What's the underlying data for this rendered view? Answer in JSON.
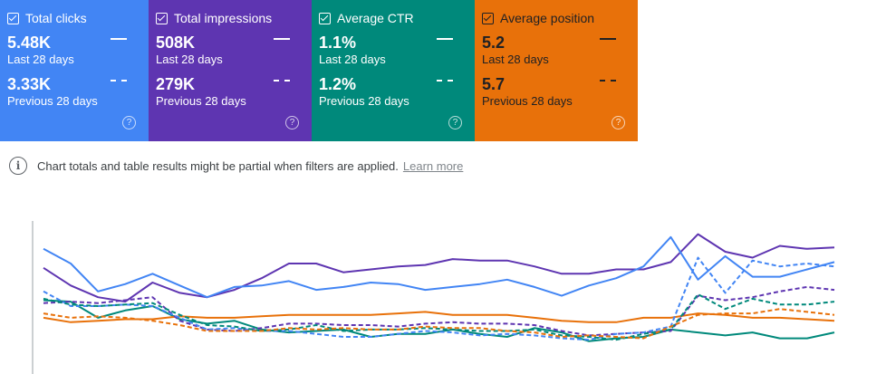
{
  "cards": [
    {
      "title": "Total clicks",
      "current_value": "5.48K",
      "current_period": "Last 28 days",
      "previous_value": "3.33K",
      "previous_period": "Previous 28 days",
      "color": "#4285f4"
    },
    {
      "title": "Total impressions",
      "current_value": "508K",
      "current_period": "Last 28 days",
      "previous_value": "279K",
      "previous_period": "Previous 28 days",
      "color": "#5e35b1"
    },
    {
      "title": "Average CTR",
      "current_value": "1.1%",
      "current_period": "Last 28 days",
      "previous_value": "1.2%",
      "previous_period": "Previous 28 days",
      "color": "#00897b"
    },
    {
      "title": "Average position",
      "current_value": "5.2",
      "current_period": "Last 28 days",
      "previous_value": "5.7",
      "previous_period": "Previous 28 days",
      "color": "#e8710a"
    }
  ],
  "help_glyph": "?",
  "notice": {
    "info_glyph": "i",
    "text": "Chart totals and table results might be partial when filters are applied.",
    "link": "Learn more"
  },
  "chart_data": {
    "type": "line",
    "note": "Values are relative (0-100) as no axis is visible; higher = visually higher.",
    "series": [
      {
        "key": "impressions_current",
        "color": "#5e35b1",
        "dashed": false,
        "values": [
          68,
          56,
          48,
          45,
          58,
          51,
          48,
          53,
          61,
          71,
          71,
          65,
          67,
          69,
          70,
          74,
          73,
          73,
          69,
          64,
          64,
          67,
          67,
          72,
          91,
          79,
          75,
          83,
          81,
          82
        ]
      },
      {
        "key": "clicks_current",
        "color": "#4285f4",
        "dashed": false,
        "values": [
          81,
          71,
          52,
          57,
          64,
          56,
          48,
          55,
          56,
          59,
          53,
          55,
          58,
          57,
          53,
          55,
          57,
          60,
          55,
          49,
          56,
          61,
          69,
          89,
          60,
          76,
          62,
          62,
          67,
          72
        ]
      },
      {
        "key": "ctr_current",
        "color": "#00897b",
        "dashed": false,
        "values": [
          46,
          45,
          34,
          39,
          42,
          33,
          30,
          32,
          26,
          24,
          25,
          26,
          21,
          23,
          23,
          26,
          23,
          21,
          27,
          24,
          18,
          20,
          21,
          26,
          24,
          22,
          24,
          20,
          20,
          24
        ]
      },
      {
        "key": "position_current",
        "color": "#e8710a",
        "dashed": false,
        "values": [
          34,
          31,
          32,
          33,
          33,
          35,
          34,
          34,
          35,
          36,
          36,
          36,
          36,
          37,
          38,
          36,
          36,
          36,
          34,
          32,
          31,
          31,
          34,
          34,
          37,
          36,
          34,
          34,
          33,
          32
        ]
      },
      {
        "key": "impressions_previous",
        "color": "#5e35b1",
        "dashed": true,
        "values": [
          44,
          45,
          44,
          46,
          48,
          32,
          26,
          25,
          27,
          30,
          30,
          29,
          29,
          28,
          30,
          31,
          30,
          30,
          29,
          25,
          22,
          23,
          24,
          25,
          49,
          46,
          48,
          52,
          55,
          53
        ]
      },
      {
        "key": "clicks_previous",
        "color": "#4285f4",
        "dashed": true,
        "values": [
          52,
          42,
          42,
          43,
          42,
          34,
          26,
          27,
          25,
          25,
          23,
          21,
          21,
          23,
          25,
          24,
          22,
          23,
          22,
          20,
          19,
          23,
          24,
          28,
          75,
          51,
          73,
          69,
          71,
          69
        ]
      },
      {
        "key": "ctr_previous",
        "color": "#00897b",
        "dashed": true,
        "values": [
          47,
          43,
          42,
          43,
          44,
          36,
          29,
          28,
          25,
          26,
          29,
          25,
          26,
          26,
          27,
          26,
          25,
          25,
          26,
          22,
          21,
          19,
          23,
          26,
          50,
          40,
          47,
          43,
          43,
          45
        ]
      },
      {
        "key": "position_previous",
        "color": "#e8710a",
        "dashed": true,
        "values": [
          37,
          34,
          35,
          34,
          32,
          29,
          25,
          25,
          25,
          27,
          26,
          27,
          26,
          26,
          28,
          27,
          27,
          25,
          24,
          21,
          22,
          21,
          20,
          28,
          36,
          37,
          37,
          40,
          38,
          36
        ]
      }
    ]
  }
}
